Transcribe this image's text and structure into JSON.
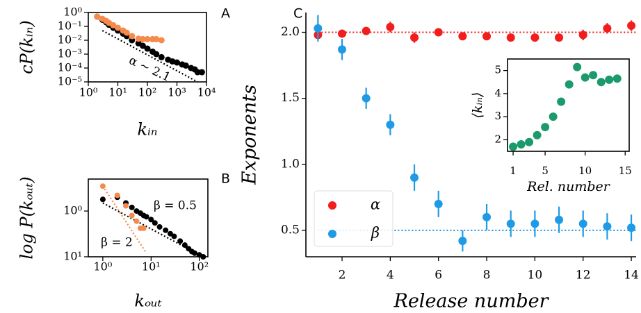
{
  "chart_data": [
    {
      "type": "scatter",
      "panel_label": "A",
      "xlog": true,
      "ylog": true,
      "x_label": "kᵢₙ",
      "y_label": "cP(kᵢₙ)",
      "xlim": [
        1,
        10000
      ],
      "ylim": [
        1e-05,
        1
      ],
      "xticks": [
        {
          "value": 1,
          "label": "10⁰"
        },
        {
          "value": 10,
          "label": "10¹"
        },
        {
          "value": 100,
          "label": "10²"
        },
        {
          "value": 1000,
          "label": "10³"
        },
        {
          "value": 10000,
          "label": "10⁴"
        }
      ],
      "yticks": [
        {
          "value": 1e-05,
          "label": "10⁻⁵"
        },
        {
          "value": 0.0001,
          "label": "10⁻⁴"
        },
        {
          "value": 0.001,
          "label": "10⁻³"
        },
        {
          "value": 0.01,
          "label": "10⁻²"
        },
        {
          "value": 0.1,
          "label": "10⁻¹"
        },
        {
          "value": 1,
          "label": "10⁰"
        }
      ],
      "series": [
        {
          "color": "#000000",
          "x": [
            2,
            3,
            4,
            5,
            7,
            10,
            15,
            20,
            30,
            50,
            70,
            100,
            150,
            200,
            300,
            500,
            700,
            1000,
            1500,
            2000,
            3000,
            4000,
            5000,
            7000
          ],
          "values": [
            0.5,
            0.3,
            0.2,
            0.13,
            0.08,
            0.05,
            0.03,
            0.02,
            0.01,
            0.006,
            0.004,
            0.0025,
            0.0015,
            0.001,
            0.0006,
            0.0004,
            0.0003,
            0.00025,
            0.00018,
            0.00015,
            0.0001,
            8e-05,
            5e-05,
            5e-05
          ]
        },
        {
          "color": "#f58a4b",
          "x": [
            2,
            3,
            4,
            5,
            7,
            10,
            15,
            20,
            30,
            50,
            70,
            100,
            150,
            200,
            300
          ],
          "values": [
            0.5,
            0.35,
            0.25,
            0.18,
            0.12,
            0.08,
            0.05,
            0.035,
            0.02,
            0.013,
            0.012,
            0.012,
            0.012,
            0.012,
            0.01
          ]
        }
      ],
      "fit_lines": [
        {
          "color": "#000000",
          "x": [
            3,
            5000
          ],
          "values": [
            0.05,
            1e-05
          ]
        }
      ],
      "annotations": [
        "α ∼ 2.1"
      ]
    },
    {
      "type": "scatter",
      "panel_label": "B",
      "xlog": true,
      "ylog": true,
      "x_label": "kₒᵤₜ",
      "y_label": "log P(kₒᵤₜ)",
      "xlim": [
        0.5,
        150
      ],
      "ylim": [
        0.1,
        5
      ],
      "xticks": [
        {
          "value": 1,
          "label": "10⁰"
        },
        {
          "value": 10,
          "label": "10¹"
        },
        {
          "value": 100,
          "label": "10²"
        }
      ],
      "yticks": [
        {
          "value": 0.1,
          "label": "10¹"
        },
        {
          "value": 1,
          "label": "10⁰"
        }
      ],
      "series": [
        {
          "color": "#000000",
          "x": [
            1,
            2,
            3,
            4,
            5,
            6,
            7,
            8,
            10,
            12,
            15,
            20,
            25,
            30,
            40,
            50,
            60,
            70,
            80,
            100,
            120
          ],
          "values": [
            1.8,
            2.0,
            1.5,
            1.2,
            1.0,
            0.9,
            0.8,
            0.75,
            0.65,
            0.55,
            0.45,
            0.38,
            0.32,
            0.28,
            0.22,
            0.18,
            0.15,
            0.13,
            0.12,
            0.11,
            0.1
          ]
        },
        {
          "color": "#f58a4b",
          "x": [
            1,
            2,
            3,
            4,
            5,
            6,
            7
          ],
          "values": [
            3.5,
            2.2,
            1.3,
            0.8,
            0.6,
            0.42,
            0.42
          ]
        }
      ],
      "fit_lines": [
        {
          "color": "#000000",
          "x": [
            1,
            100
          ],
          "values": [
            1.5,
            0.11
          ]
        },
        {
          "color": "#f58a4b",
          "x": [
            1,
            8
          ],
          "values": [
            3.5,
            0.12
          ]
        }
      ],
      "annotations": [
        "β = 0.5",
        "β = 2"
      ]
    },
    {
      "type": "errorbar",
      "panel_label": "C",
      "x_label": "Release number",
      "y_label": "Exponents",
      "xlim": [
        0.5,
        14.2
      ],
      "ylim": [
        0.3,
        2.15
      ],
      "xticks": [
        2,
        4,
        6,
        8,
        10,
        12,
        14
      ],
      "yticks": [
        0.5,
        {
          "value": 1,
          "label": "1.0"
        },
        1.5,
        {
          "value": 2,
          "label": "2.0"
        }
      ],
      "x": [
        1,
        2,
        3,
        4,
        5,
        6,
        7,
        8,
        9,
        10,
        11,
        12,
        13,
        14
      ],
      "series": [
        {
          "name": "α",
          "color": "#f21d1d",
          "values": [
            1.98,
            1.99,
            2.01,
            2.04,
            1.96,
            2.0,
            1.97,
            1.97,
            1.96,
            1.96,
            1.96,
            1.98,
            2.03,
            2.05
          ],
          "errors": [
            0.03,
            0.03,
            0.03,
            0.04,
            0.04,
            0.03,
            0.03,
            0.03,
            0.03,
            0.03,
            0.03,
            0.04,
            0.04,
            0.04
          ]
        },
        {
          "name": "β",
          "color": "#1f9be6",
          "values": [
            2.03,
            1.87,
            1.5,
            1.3,
            0.9,
            0.7,
            0.42,
            0.6,
            0.55,
            0.55,
            0.58,
            0.55,
            0.53,
            0.52
          ],
          "errors": [
            0.1,
            0.08,
            0.08,
            0.08,
            0.1,
            0.1,
            0.08,
            0.1,
            0.1,
            0.1,
            0.1,
            0.1,
            0.1,
            0.1
          ]
        }
      ],
      "fit_lines": [
        {
          "color": "#f21d1d",
          "x": [
            1,
            14.2
          ],
          "values": [
            2,
            2
          ]
        },
        {
          "color": "#1f9be6",
          "x": [
            1,
            14.2
          ],
          "values": [
            0.5,
            0.5
          ]
        }
      ]
    },
    {
      "type": "scatter",
      "x_label": "Rel. number",
      "y_label": "⟨kᵢₙ⟩",
      "xlim": [
        0.3,
        15.5
      ],
      "ylim": [
        1.5,
        5.5
      ],
      "xticks": [
        1,
        5,
        10,
        15
      ],
      "yticks": [
        2,
        3,
        4,
        5
      ],
      "series": [
        {
          "color": "#1b9a6c",
          "x": [
            1,
            2,
            3,
            4,
            5,
            6,
            7,
            8,
            9,
            10,
            11,
            12,
            13,
            14
          ],
          "values": [
            1.7,
            1.8,
            1.9,
            2.2,
            2.55,
            3.0,
            3.65,
            4.4,
            5.15,
            4.7,
            4.8,
            4.5,
            4.6,
            4.65
          ]
        }
      ]
    }
  ]
}
